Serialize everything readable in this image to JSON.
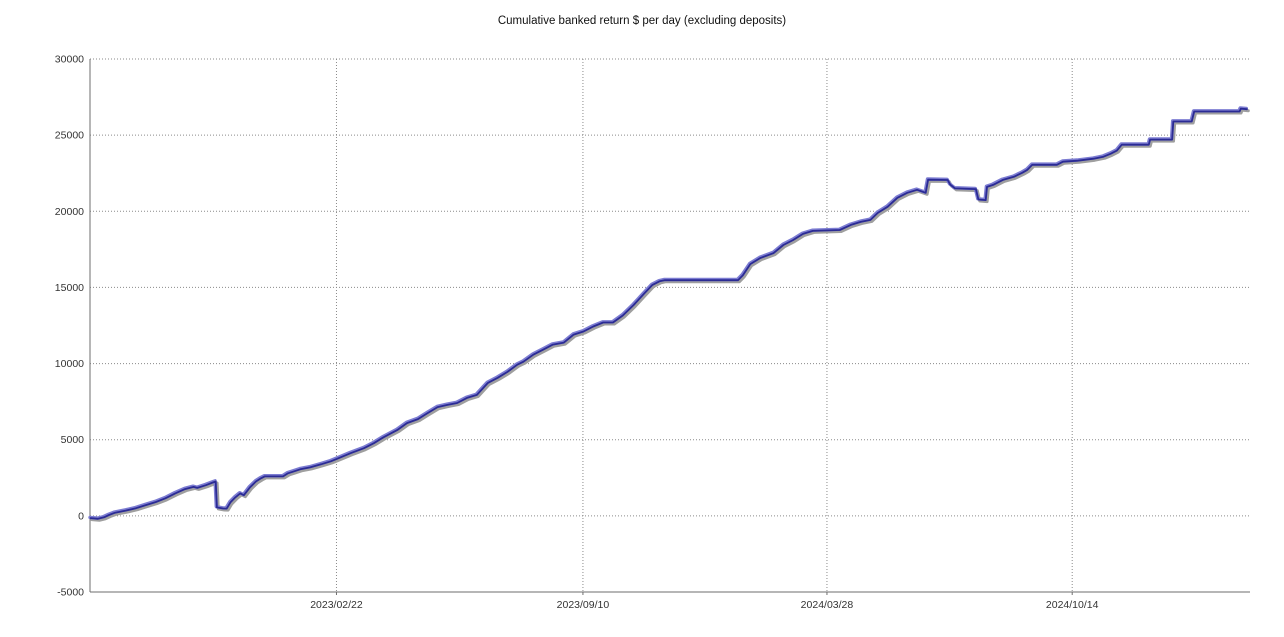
{
  "title": "Cumulative banked return $ per day (excluding deposits)",
  "colors": {
    "line_core": "#2b2b94",
    "line_halo": "#7d7dd2",
    "line_shadow": "#9f9f9f",
    "grid": "#8a8a8a",
    "axis": "#6e6e6e",
    "tick_text": "#333333",
    "background": "#ffffff"
  },
  "chart_data": {
    "type": "line",
    "title": "Cumulative banked return $ per day (excluding deposits)",
    "xlabel": "",
    "ylabel": "",
    "grid": "dotted",
    "legend": "none",
    "xlim": [
      0,
      946
    ],
    "ylim": [
      -5000,
      30000
    ],
    "y_ticks": [
      -5000,
      0,
      5000,
      10000,
      15000,
      20000,
      25000,
      30000
    ],
    "x_ticks": [
      {
        "day": 201,
        "label": "2023/02/22"
      },
      {
        "day": 402,
        "label": "2023/09/10"
      },
      {
        "day": 601,
        "label": "2024/03/28"
      },
      {
        "day": 801,
        "label": "2024/10/14"
      }
    ],
    "series": [
      {
        "name": "cumulative-banked-return",
        "points": [
          [
            0,
            -100
          ],
          [
            6,
            -150
          ],
          [
            11,
            -50
          ],
          [
            15,
            100
          ],
          [
            20,
            250
          ],
          [
            29,
            400
          ],
          [
            37,
            550
          ],
          [
            45,
            750
          ],
          [
            53,
            950
          ],
          [
            61,
            1200
          ],
          [
            69,
            1520
          ],
          [
            77,
            1800
          ],
          [
            84,
            1950
          ],
          [
            87,
            1880
          ],
          [
            94,
            2060
          ],
          [
            100,
            2240
          ],
          [
            102,
            2300
          ],
          [
            103,
            600
          ],
          [
            108,
            530
          ],
          [
            111,
            520
          ],
          [
            114,
            930
          ],
          [
            118,
            1260
          ],
          [
            122,
            1520
          ],
          [
            125,
            1400
          ],
          [
            130,
            1920
          ],
          [
            135,
            2310
          ],
          [
            139,
            2510
          ],
          [
            142,
            2640
          ],
          [
            157,
            2640
          ],
          [
            161,
            2840
          ],
          [
            166,
            2970
          ],
          [
            171,
            3100
          ],
          [
            179,
            3230
          ],
          [
            188,
            3430
          ],
          [
            196,
            3630
          ],
          [
            204,
            3890
          ],
          [
            212,
            4160
          ],
          [
            223,
            4490
          ],
          [
            231,
            4820
          ],
          [
            239,
            5210
          ],
          [
            250,
            5680
          ],
          [
            258,
            6140
          ],
          [
            267,
            6400
          ],
          [
            275,
            6800
          ],
          [
            283,
            7190
          ],
          [
            291,
            7330
          ],
          [
            299,
            7460
          ],
          [
            307,
            7790
          ],
          [
            315,
            7990
          ],
          [
            324,
            8780
          ],
          [
            332,
            9110
          ],
          [
            340,
            9500
          ],
          [
            348,
            9970
          ],
          [
            353,
            10170
          ],
          [
            361,
            10630
          ],
          [
            369,
            10960
          ],
          [
            377,
            11290
          ],
          [
            386,
            11420
          ],
          [
            394,
            11950
          ],
          [
            402,
            12150
          ],
          [
            410,
            12480
          ],
          [
            418,
            12740
          ],
          [
            426,
            12740
          ],
          [
            434,
            13200
          ],
          [
            443,
            13900
          ],
          [
            451,
            14600
          ],
          [
            458,
            15200
          ],
          [
            464,
            15450
          ],
          [
            468,
            15520
          ],
          [
            528,
            15520
          ],
          [
            532,
            15850
          ],
          [
            538,
            16580
          ],
          [
            546,
            16970
          ],
          [
            557,
            17300
          ],
          [
            565,
            17830
          ],
          [
            573,
            18160
          ],
          [
            581,
            18560
          ],
          [
            589,
            18760
          ],
          [
            611,
            18820
          ],
          [
            620,
            19150
          ],
          [
            628,
            19350
          ],
          [
            636,
            19480
          ],
          [
            642,
            19940
          ],
          [
            650,
            20340
          ],
          [
            658,
            20930
          ],
          [
            666,
            21260
          ],
          [
            674,
            21460
          ],
          [
            681,
            21260
          ],
          [
            683,
            22120
          ],
          [
            699,
            22100
          ],
          [
            701,
            21800
          ],
          [
            705,
            21550
          ],
          [
            722,
            21500
          ],
          [
            724,
            20820
          ],
          [
            730,
            20780
          ],
          [
            731,
            21650
          ],
          [
            736,
            21780
          ],
          [
            744,
            22110
          ],
          [
            753,
            22310
          ],
          [
            760,
            22580
          ],
          [
            764,
            22770
          ],
          [
            768,
            23100
          ],
          [
            788,
            23100
          ],
          [
            793,
            23300
          ],
          [
            805,
            23370
          ],
          [
            818,
            23500
          ],
          [
            826,
            23630
          ],
          [
            832,
            23830
          ],
          [
            837,
            24030
          ],
          [
            841,
            24420
          ],
          [
            863,
            24420
          ],
          [
            864,
            24750
          ],
          [
            882,
            24750
          ],
          [
            883,
            25940
          ],
          [
            898,
            25940
          ],
          [
            900,
            26600
          ],
          [
            937,
            26600
          ],
          [
            938,
            26790
          ],
          [
            943,
            26750
          ]
        ]
      }
    ]
  }
}
